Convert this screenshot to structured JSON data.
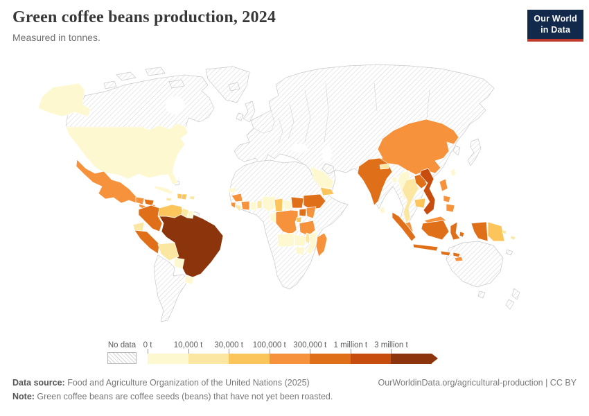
{
  "header": {
    "title": "Green coffee beans production, 2024",
    "subtitle": "Measured in tonnes."
  },
  "logo": {
    "line1": "Our World",
    "line2": "in Data",
    "bg_color": "#12294b",
    "accent_color": "#c0392b"
  },
  "legend": {
    "no_data_label": "No data",
    "tick_labels": [
      "0 t",
      "10,000 t",
      "30,000 t",
      "100,000 t",
      "300,000 t",
      "1 million t",
      "3 million t"
    ],
    "bin_colors": [
      "#FDF8CF",
      "#FCE7A2",
      "#FBC55C",
      "#F6913C",
      "#E06F1A",
      "#C74D0F",
      "#8C350C"
    ]
  },
  "footer": {
    "source_label": "Data source:",
    "source_text": " Food and Agriculture Organization of the United Nations (2025)",
    "link_text": "OurWorldinData.org/agricultural-production | CC BY",
    "note_label": "Note:",
    "note_text": " Green coffee beans are coffee seeds (beans) that have not yet been roasted."
  },
  "chart_data": {
    "type": "choropleth",
    "title": "Green coffee beans production, 2024",
    "unit": "tonnes",
    "legend_position": "bottom",
    "no_data_style": "gray diagonal hatching",
    "bin_edges_tonnes": [
      0,
      10000,
      30000,
      100000,
      300000,
      1000000,
      3000000
    ],
    "bin_index_meaning": "0:0-10k, 1:10k-30k, 2:30k-100k, 3:100k-300k, 4:300k-1M, 5:1M-3M, 6:3M+",
    "countries": {
      "United States": 0,
      "Cuba": 0,
      "Jamaica": 1,
      "Haiti": 2,
      "Dominican Republic": 2,
      "Puerto Rico": 1,
      "Mexico": 3,
      "Guatemala": 3,
      "El Salvador": 3,
      "Honduras": 4,
      "Nicaragua": 3,
      "Costa Rica": 3,
      "Panama": 1,
      "Colombia": 4,
      "Venezuela": 2,
      "Guyana": 1,
      "Suriname": 0,
      "Ecuador": 1,
      "Peru": 4,
      "Bolivia": 1,
      "Paraguay": 0,
      "Uruguay": 0,
      "Brazil": 6,
      "Senegal": 0,
      "Guinea": 3,
      "Sierra Leone": 3,
      "Liberia": 1,
      "Cote d'Ivoire": 3,
      "Ghana": 0,
      "Togo": 1,
      "Nigeria": 0,
      "Cameroon": 2,
      "Central African Republic": 0,
      "South Sudan": 4,
      "Ethiopia": 4,
      "Uganda": 4,
      "Kenya": 3,
      "Rwanda": 2,
      "DR Congo": 3,
      "Congo": 0,
      "Tanzania": 3,
      "Angola": 0,
      "Zambia": 0,
      "Malawi": 1,
      "Mozambique": 0,
      "Zimbabwe": 0,
      "Madagascar": 3,
      "Saudi Arabia": 0,
      "Yemen": 2,
      "India": 4,
      "Nepal": 1,
      "Bangladesh": 0,
      "Sri Lanka": 0,
      "China": 3,
      "Taiwan": 0,
      "Myanmar": 0,
      "Laos": 4,
      "Vietnam": 5,
      "Thailand": 1,
      "Cambodia": 2,
      "Malaysia": 3,
      "Indonesia": 4,
      "Philippines": 3,
      "Timor-Leste": 3,
      "Papua New Guinea": 2,
      "Fiji": 1,
      "Vanuatu": 1
    }
  }
}
